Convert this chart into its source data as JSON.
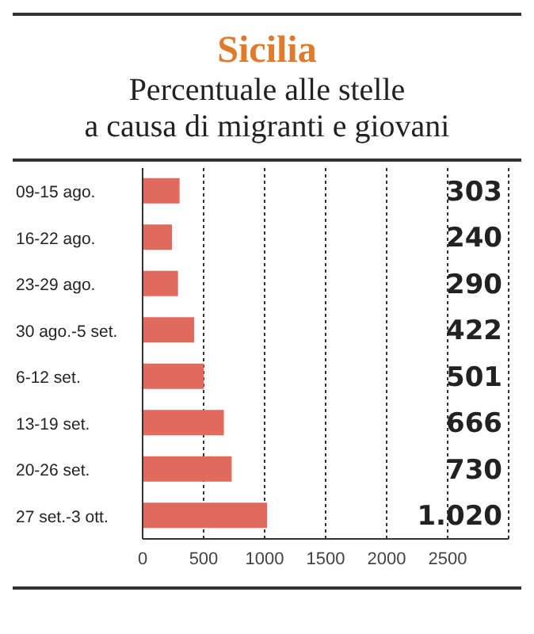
{
  "chart_data": {
    "type": "bar",
    "orientation": "horizontal",
    "title": "Sicilia",
    "subtitle": "Percentuale alle stelle\na causa di migranti e giovani",
    "categories": [
      "09-15 ago.",
      "16-22 ago.",
      "23-29 ago.",
      "30 ago.-5 set.",
      "6-12 set.",
      "13-19 set.",
      "20-26 set.",
      "27 set.-3 ott."
    ],
    "values": [
      303,
      240,
      290,
      422,
      501,
      666,
      730,
      1020
    ],
    "value_labels": [
      "303",
      "240",
      "290",
      "422",
      "501",
      "666",
      "730",
      "1.020"
    ],
    "color": "#e06a5c",
    "xlim": [
      0,
      3000
    ],
    "xticks": [
      0,
      500,
      1000,
      1500,
      2000,
      2500
    ],
    "grid": "x"
  }
}
